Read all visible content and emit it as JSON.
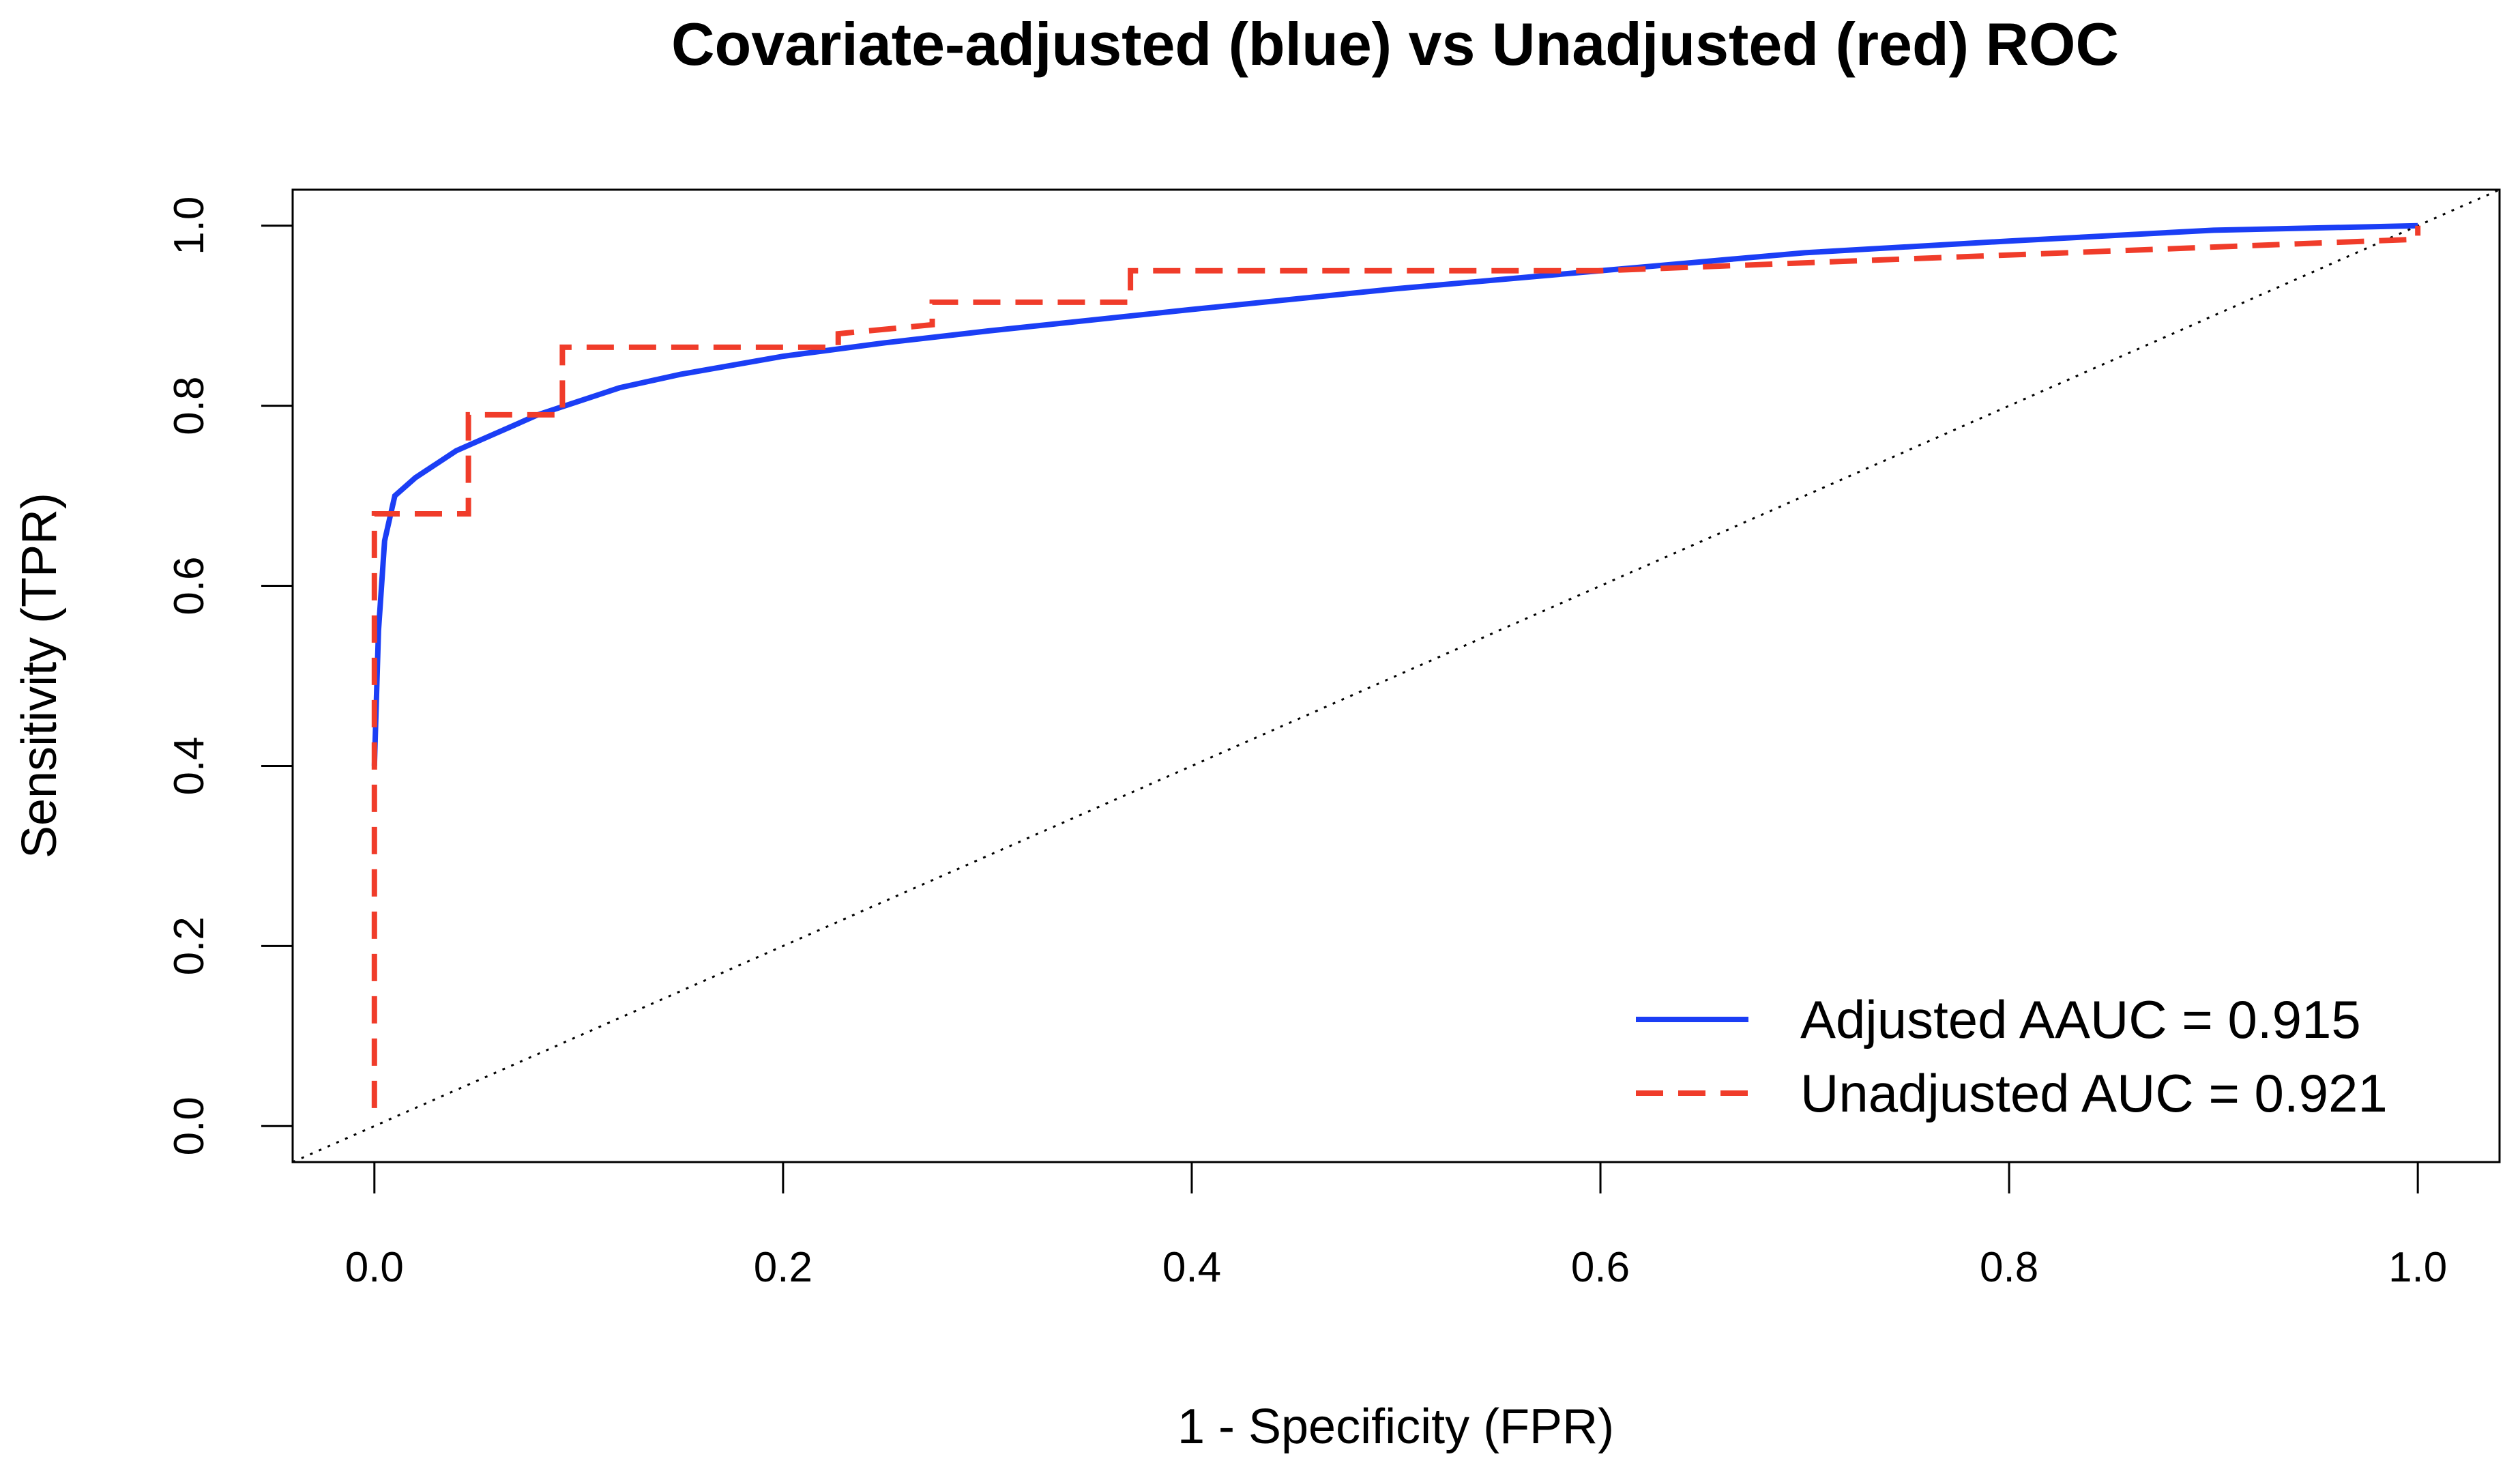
{
  "chart_data": {
    "type": "line",
    "title": "Covariate-adjusted (blue) vs Unadjusted (red) ROC",
    "x_label": "1 - Specificity (FPR)",
    "y_label": "Sensitivity (TPR)",
    "xlim": [
      -0.04,
      1.04
    ],
    "ylim": [
      -0.04,
      1.04
    ],
    "xticks": [
      {
        "value": 0,
        "label": "0.0"
      },
      0.2,
      0.4,
      0.6,
      0.8,
      {
        "value": 1,
        "label": "1.0"
      }
    ],
    "yticks": [
      {
        "value": 0,
        "label": "0.0"
      },
      0.2,
      0.4,
      0.6,
      0.8,
      {
        "value": 1,
        "label": "1.0"
      }
    ],
    "legend": "bottom-right",
    "series": [
      {
        "name": "Adjusted AAUC = 0.915",
        "color": "#1b3ef5",
        "style": "solid",
        "x": [
          0,
          0.002,
          0.005,
          0.01,
          0.02,
          0.04,
          0.06,
          0.08,
          0.1,
          0.12,
          0.15,
          0.2,
          0.25,
          0.3,
          0.35,
          0.4,
          0.5,
          0.6,
          0.7,
          0.8,
          0.9,
          1
        ],
        "values": [
          0.4,
          0.55,
          0.65,
          0.7,
          0.72,
          0.75,
          0.77,
          0.79,
          0.805,
          0.82,
          0.835,
          0.855,
          0.87,
          0.883,
          0.895,
          0.907,
          0.93,
          0.95,
          0.97,
          0.983,
          0.995,
          1
        ]
      },
      {
        "name": "Unadjusted AUC = 0.921",
        "color": "#f03c2a",
        "style": "dashed",
        "x": [
          0,
          0,
          0.046,
          0.046,
          0.092,
          0.092,
          0.227,
          0.227,
          0.273,
          0.273,
          0.37,
          0.37,
          0.6,
          1,
          1
        ],
        "values": [
          0.02,
          0.68,
          0.68,
          0.79,
          0.79,
          0.865,
          0.865,
          0.88,
          0.89,
          0.915,
          0.915,
          0.95,
          0.95,
          0.985,
          1
        ]
      }
    ]
  }
}
